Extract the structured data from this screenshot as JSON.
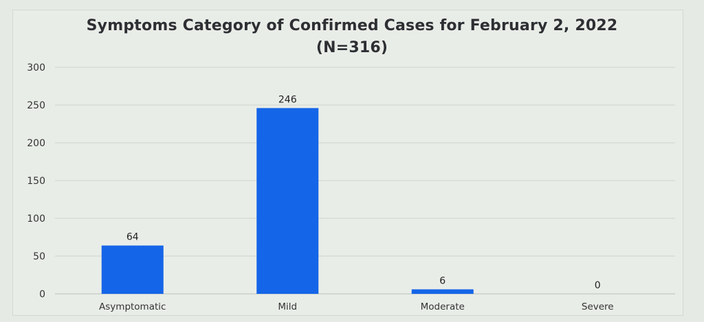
{
  "chart_data": {
    "type": "bar",
    "title": "Symptoms Category of Confirmed Cases for  February 2, 2022",
    "subtitle": "(N=316)",
    "categories": [
      "Asymptomatic",
      "Mild",
      "Moderate",
      "Severe"
    ],
    "values": [
      64,
      246,
      6,
      0
    ],
    "data_labels": [
      "64",
      "246",
      "6",
      "0"
    ],
    "ylim": [
      0,
      300
    ],
    "yticks": [
      "0",
      "50",
      "100",
      "150",
      "200",
      "250",
      "300"
    ],
    "xlabel": "",
    "ylabel": "",
    "grid": true,
    "legend": "none",
    "bar_color": "#1565e8"
  }
}
